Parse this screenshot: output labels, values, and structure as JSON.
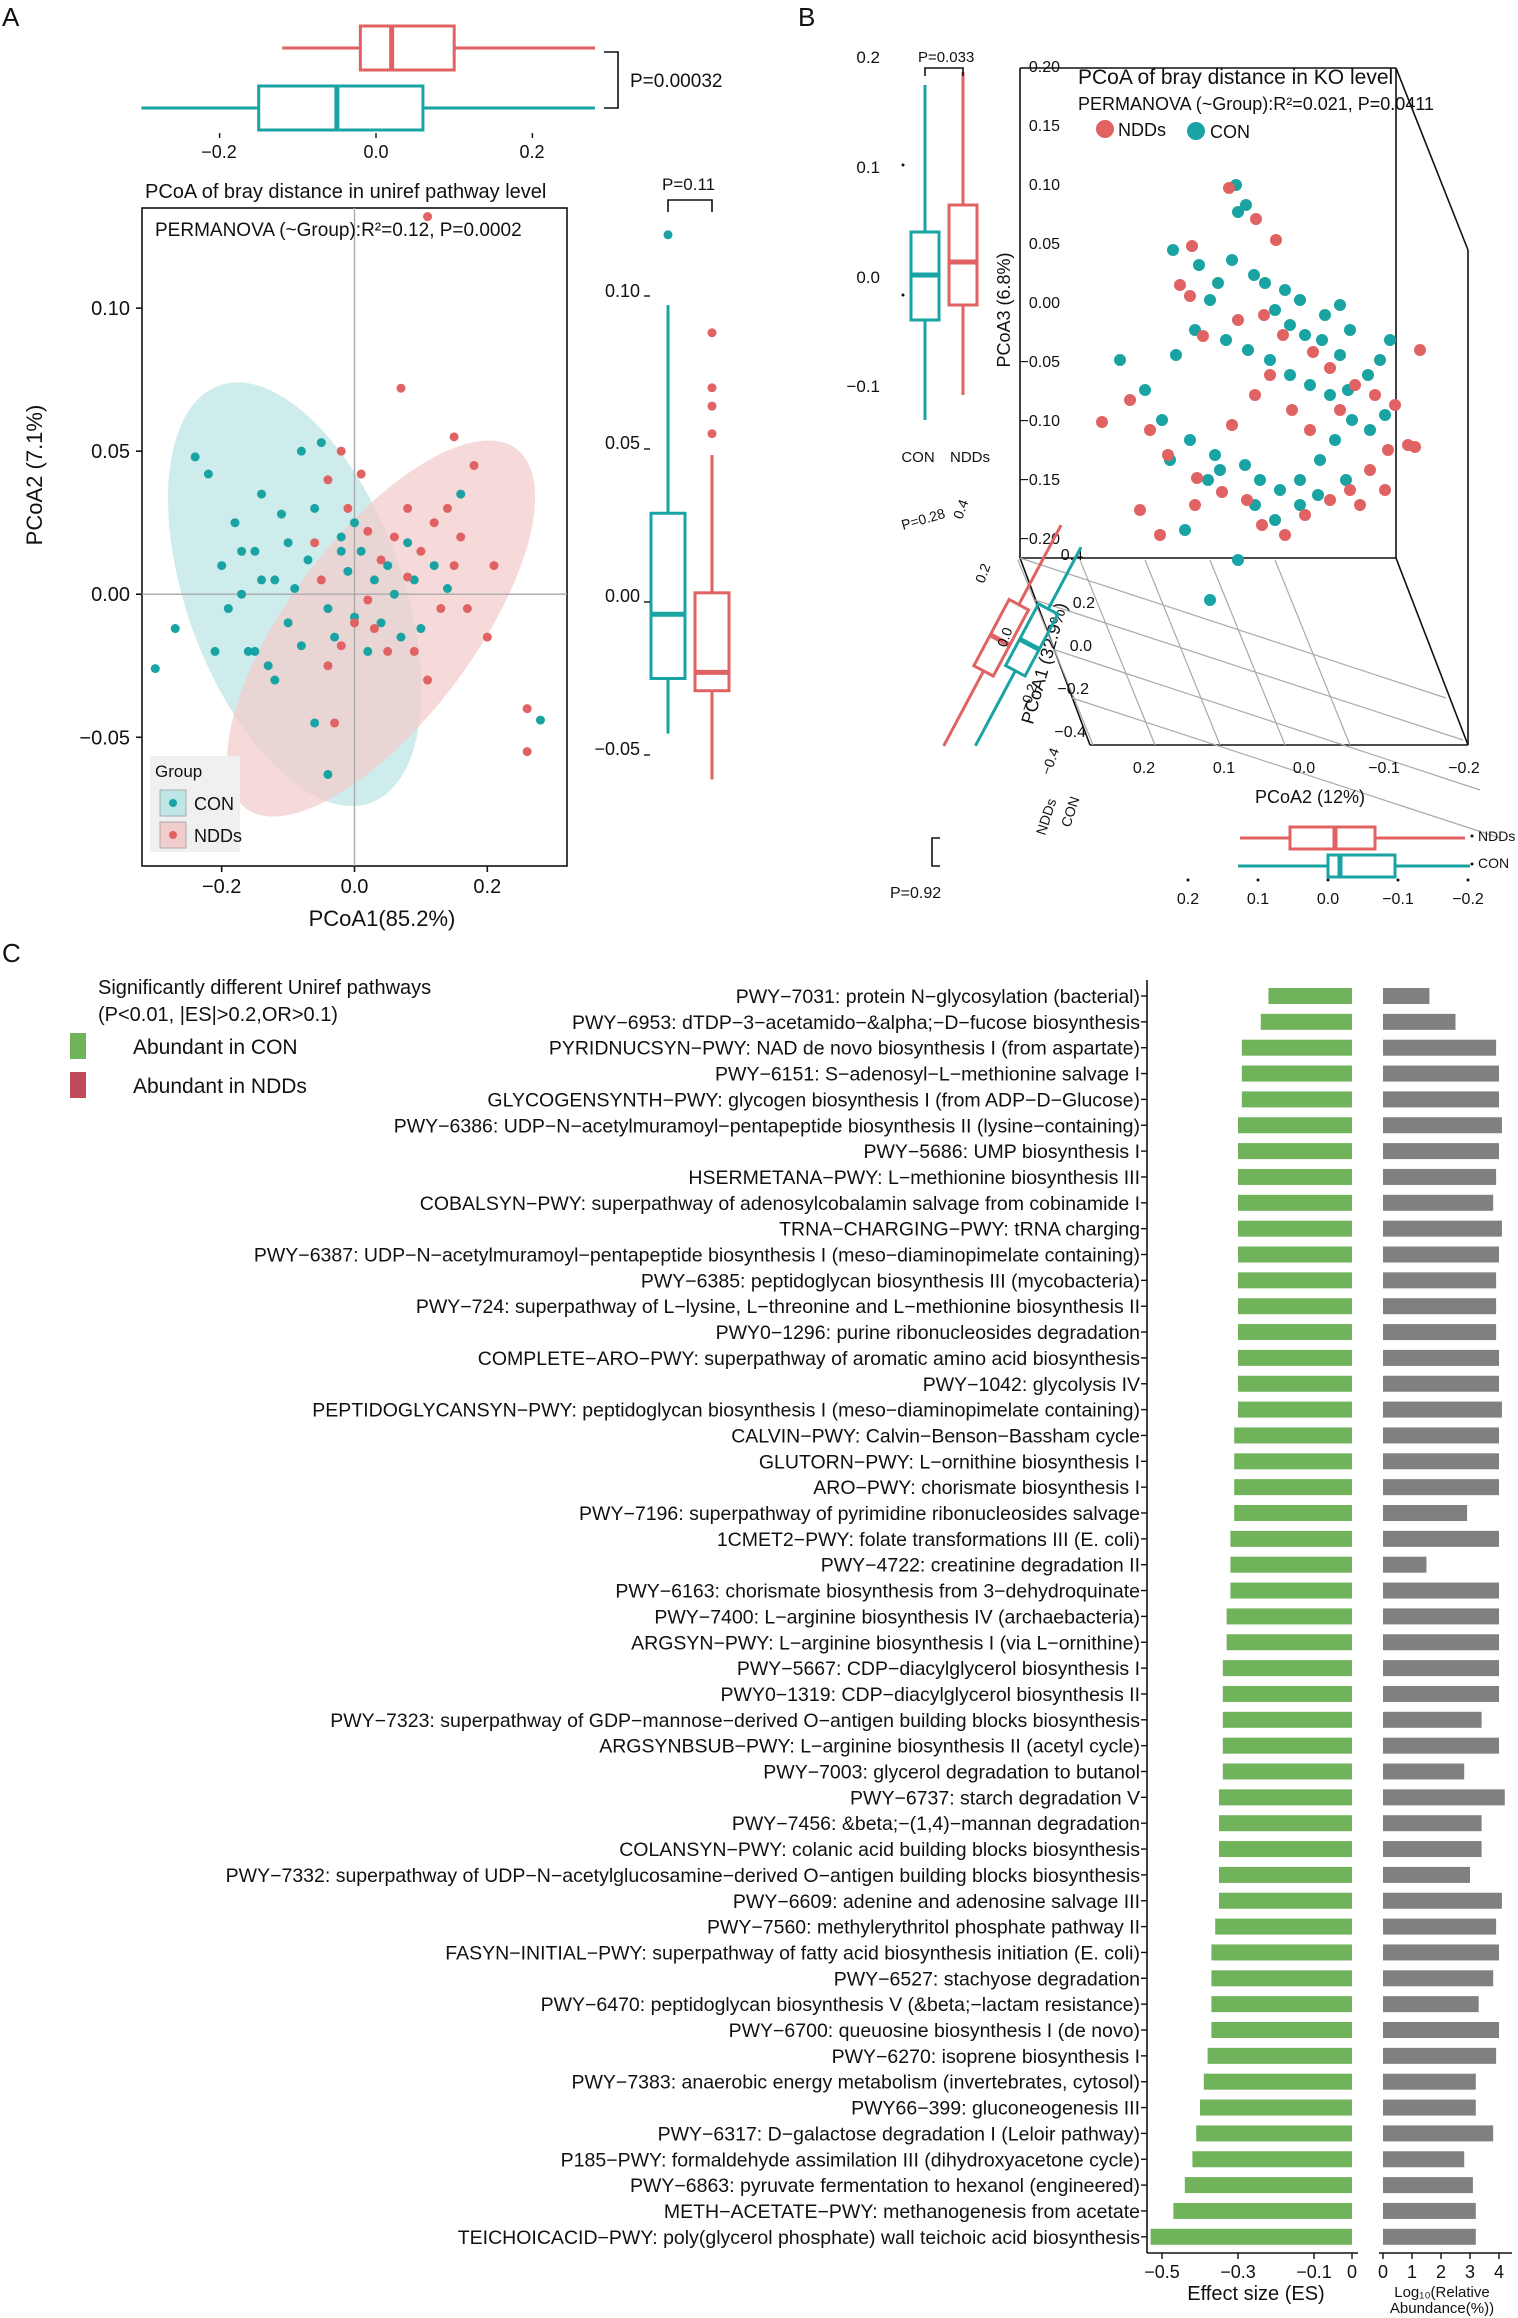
{
  "panel_labels": {
    "a": "A",
    "b": "B",
    "c": "C"
  },
  "colors": {
    "con": "#1aa3a3",
    "ndd": "#e06262",
    "green": "#71b35a",
    "gray": "#808080",
    "ellipse_con": "#bfe6e6",
    "ellipse_ndd": "#f3cdcd"
  },
  "chart_data": [
    {
      "type": "scatter",
      "id": "panel_a",
      "title": "PCoA of bray distance in uniref pathway level",
      "subtitle": "PERMANOVA (~Group):R²=0.12, P=0.0002",
      "xlabel": "PCoA1(85.2%)",
      "ylabel": "PCoA2 (7.1%)",
      "xlim": [
        -0.32,
        0.32
      ],
      "ylim": [
        -0.095,
        0.135
      ],
      "x_ticks": [
        -0.2,
        0.0,
        0.2
      ],
      "x_tick_labels": [
        "−0.2",
        "0.0",
        "0.2"
      ],
      "y_ticks": [
        -0.05,
        0.0,
        0.05,
        0.1
      ],
      "y_tick_labels": [
        "−0.05",
        "0.00",
        "0.05",
        "0.10"
      ],
      "legend_title": "Group",
      "legend": [
        "CON",
        "NDDs"
      ],
      "top_box_p": "P=0.00032",
      "top_box_ticks": [
        "−0.2",
        "0.0",
        "0.2"
      ],
      "top_box": [
        {
          "group": "NDDs",
          "min": -0.12,
          "q1": -0.02,
          "median": 0.02,
          "q3": 0.1,
          "max": 0.28
        },
        {
          "group": "CON",
          "min": -0.3,
          "q1": -0.15,
          "median": -0.05,
          "q3": 0.06,
          "max": 0.28
        }
      ],
      "right_box_p": "P=0.11",
      "right_box_ticks": [
        "0.10",
        "0.05",
        "0.00",
        "−0.05"
      ],
      "right_box": [
        {
          "group": "CON",
          "min": -0.043,
          "q1": -0.025,
          "median": -0.004,
          "q3": 0.029,
          "max": 0.097,
          "outliers": [
            0.12
          ]
        },
        {
          "group": "NDDs",
          "min": -0.058,
          "q1": -0.029,
          "median": -0.023,
          "q3": 0.003,
          "max": 0.048,
          "outliers": [
            0.055,
            0.064,
            0.07,
            0.088
          ]
        }
      ]
    },
    {
      "type": "scatter",
      "id": "panel_b",
      "title": "PCoA of bray distance in KO level",
      "subtitle": "PERMANOVA (~Group):R²=0.021, P=0.0411",
      "legend": [
        "NDDs",
        "CON"
      ],
      "zlabel": "PCoA3 (6.8%)",
      "xlabel": "PCoA2 (12%)",
      "ylabel": "PCoA1 (32.9%)",
      "z_ticks": [
        "0.20",
        "0.15",
        "0.10",
        "0.05",
        "0.00",
        "−0.05",
        "−0.10",
        "−0.15",
        "−0.20"
      ],
      "x_ticks": [
        "0.2",
        "0.1",
        "0.0",
        "−0.1",
        "−0.2"
      ],
      "y_ticks": [
        "0.2",
        "0.0",
        "−0.2",
        "−0.4"
      ],
      "floor_extra": "0.4",
      "left_box_p": "P=0.033",
      "left_box_ticks": [
        "0.2",
        "0.1",
        "0.0",
        "−0.1"
      ],
      "left_box_groups": [
        "CON",
        "NDDs"
      ],
      "bottom_box_p": "P=0.92",
      "bottom_box_ticks": [
        "0.2",
        "0.1",
        "0.0",
        "−0.1",
        "−0.2"
      ],
      "bottom_box_groups": [
        "NDDs",
        "CON"
      ],
      "diag_box_p": "P=0.28",
      "diag_box_ticks": [
        "0.4",
        "0.2",
        "0.0",
        "−0.2",
        "−0.4"
      ],
      "diag_box_groups": [
        "NDDs",
        "CON"
      ]
    },
    {
      "type": "bar",
      "id": "panel_c",
      "legend_title_1": "Significantly different Uniref pathways",
      "legend_title_2": "(P<0.01, |ES|>0.2,OR>0.1)",
      "legend": [
        "Abundant in CON",
        "Abundant in NDDs"
      ],
      "es_xlabel": "Effect size (ES)",
      "es_xlim": [
        -0.55,
        0
      ],
      "es_ticks": [
        -0.5,
        -0.3,
        -0.1,
        0
      ],
      "es_tick_labels": [
        "−0.5",
        "−0.3",
        "−0.1",
        "0"
      ],
      "ab_xlabel_1": "Log₁₀(Relative",
      "ab_xlabel_2": "Abundance(%))",
      "ab_xlim": [
        0,
        4.2
      ],
      "ab_ticks": [
        0,
        1,
        2,
        3,
        4
      ],
      "categories": [
        "PWY−7031: protein N−glycosylation (bacterial)",
        "PWY−6953: dTDP−3−acetamido−&alpha;−D−fucose biosynthesis",
        "PYRIDNUCSYN−PWY: NAD de novo biosynthesis I (from aspartate)",
        "PWY−6151: S−adenosyl−L−methionine salvage I",
        "GLYCOGENSYNTH−PWY: glycogen biosynthesis I (from ADP−D−Glucose)",
        "PWY−6386: UDP−N−acetylmuramoyl−pentapeptide biosynthesis II (lysine−containing)",
        "PWY−5686: UMP biosynthesis I",
        "HSERMETANA−PWY: L−methionine biosynthesis III",
        "COBALSYN−PWY: superpathway of adenosylcobalamin salvage from cobinamide I",
        "TRNA−CHARGING−PWY: tRNA charging",
        "PWY−6387: UDP−N−acetylmuramoyl−pentapeptide biosynthesis I (meso−diaminopimelate containing)",
        "PWY−6385: peptidoglycan biosynthesis III (mycobacteria)",
        "PWY−724: superpathway of L−lysine, L−threonine and L−methionine biosynthesis II",
        "PWY0−1296: purine ribonucleosides degradation",
        "COMPLETE−ARO−PWY: superpathway of aromatic amino acid biosynthesis",
        "PWY−1042: glycolysis IV",
        "PEPTIDOGLYCANSYN−PWY: peptidoglycan biosynthesis I (meso−diaminopimelate containing)",
        "CALVIN−PWY: Calvin−Benson−Bassham cycle",
        "GLUTORN−PWY: L−ornithine biosynthesis I",
        "ARO−PWY: chorismate biosynthesis I",
        "PWY−7196: superpathway of pyrimidine ribonucleosides salvage",
        "1CMET2−PWY: folate transformations III (E. coli)",
        "PWY−4722: creatinine degradation II",
        "PWY−6163: chorismate biosynthesis from 3−dehydroquinate",
        "PWY−7400: L−arginine biosynthesis IV (archaebacteria)",
        "ARGSYN−PWY: L−arginine biosynthesis I (via L−ornithine)",
        "PWY−5667: CDP−diacylglycerol biosynthesis I",
        "PWY0−1319: CDP−diacylglycerol biosynthesis II",
        "PWY−7323: superpathway of GDP−mannose−derived O−antigen building blocks biosynthesis",
        "ARGSYNBSUB−PWY: L−arginine biosynthesis II (acetyl cycle)",
        "PWY−7003: glycerol degradation to butanol",
        "PWY−6737: starch degradation V",
        "PWY−7456: &beta;−(1,4)−mannan degradation",
        "COLANSYN−PWY: colanic acid building blocks biosynthesis",
        "PWY−7332: superpathway of UDP−N−acetylglucosamine−derived O−antigen building blocks biosynthesis",
        "PWY−6609: adenine and adenosine salvage III",
        "PWY−7560: methylerythritol phosphate pathway II",
        "FASYN−INITIAL−PWY: superpathway of fatty acid biosynthesis initiation (E. coli)",
        "PWY−6527: stachyose degradation",
        "PWY−6470: peptidoglycan biosynthesis V (&beta;−lactam resistance)",
        "PWY−6700: queuosine biosynthesis I (de novo)",
        "PWY−6270: isoprene biosynthesis I",
        "PWY−7383: anaerobic energy metabolism (invertebrates, cytosol)",
        "PWY66−399: gluconeogenesis III",
        "PWY−6317: D−galactose degradation I (Leloir pathway)",
        "P185−PWY: formaldehyde assimilation III (dihydroxyacetone cycle)",
        "PWY−6863: pyruvate fermentation to hexanol (engineered)",
        "METH−ACETATE−PWY: methanogenesis from acetate",
        "TEICHOICACID−PWY: poly(glycerol phosphate) wall teichoic acid biosynthesis"
      ],
      "effect_size": [
        -0.22,
        -0.24,
        -0.29,
        -0.29,
        -0.29,
        -0.3,
        -0.3,
        -0.3,
        -0.3,
        -0.3,
        -0.3,
        -0.3,
        -0.3,
        -0.3,
        -0.3,
        -0.3,
        -0.3,
        -0.31,
        -0.31,
        -0.31,
        -0.31,
        -0.32,
        -0.32,
        -0.32,
        -0.33,
        -0.33,
        -0.34,
        -0.34,
        -0.34,
        -0.34,
        -0.34,
        -0.35,
        -0.35,
        -0.35,
        -0.35,
        -0.35,
        -0.36,
        -0.37,
        -0.37,
        -0.37,
        -0.37,
        -0.38,
        -0.39,
        -0.4,
        -0.41,
        -0.42,
        -0.44,
        -0.47,
        -0.53
      ],
      "abundance": [
        1.6,
        2.5,
        3.9,
        4.0,
        4.0,
        4.1,
        4.0,
        3.9,
        3.8,
        4.1,
        4.0,
        3.9,
        3.9,
        3.9,
        4.0,
        4.0,
        4.1,
        4.0,
        4.0,
        4.0,
        2.9,
        4.0,
        1.5,
        4.0,
        4.0,
        4.0,
        4.0,
        4.0,
        3.4,
        4.0,
        2.8,
        4.2,
        3.4,
        3.4,
        3.0,
        4.1,
        3.9,
        4.0,
        3.8,
        3.3,
        4.0,
        3.9,
        3.2,
        3.2,
        3.8,
        2.8,
        3.1,
        3.2,
        3.2
      ]
    }
  ]
}
